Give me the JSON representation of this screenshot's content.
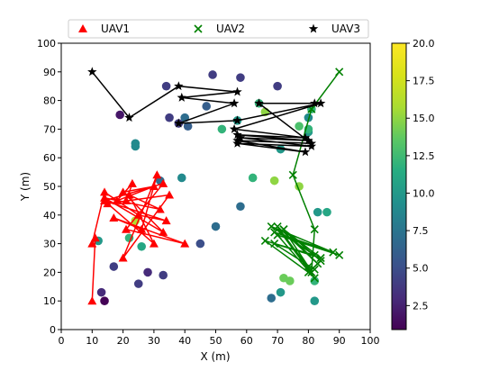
{
  "chart_data": {
    "type": "scatter",
    "title": "",
    "xlabel": "X (m)",
    "ylabel": "Y (m)",
    "xlim": [
      0,
      100
    ],
    "ylim": [
      0,
      100
    ],
    "xticks": [
      0,
      10,
      20,
      30,
      40,
      50,
      60,
      70,
      80,
      90,
      100
    ],
    "yticks": [
      0,
      10,
      20,
      30,
      40,
      50,
      60,
      70,
      80,
      90,
      100
    ],
    "grid": false,
    "legend_position": "top",
    "colorbar": {
      "min": 0.9,
      "max": 20.0,
      "ticks": [
        "2.5",
        "5.0",
        "7.5",
        "10.0",
        "12.5",
        "15.0",
        "17.5",
        "20.0"
      ],
      "colormap": "viridis"
    },
    "series": [
      {
        "name": "UAV1",
        "marker": "triangle",
        "color": "#ff0000",
        "x": [
          10,
          11,
          10,
          14,
          25,
          34,
          14,
          33,
          21,
          40,
          17,
          26,
          31,
          20,
          35,
          15,
          30,
          22,
          32,
          14,
          33,
          20,
          30,
          18,
          23,
          21
        ],
        "y": [
          10,
          32,
          30,
          48,
          40,
          38,
          45,
          51,
          35,
          30,
          39,
          35,
          54,
          25,
          47,
          44,
          30,
          47,
          42,
          46,
          34,
          48,
          50,
          45,
          51,
          45
        ]
      },
      {
        "name": "UAV2",
        "marker": "x",
        "color": "#008000",
        "x": [
          90,
          81,
          75,
          82,
          81,
          70,
          83,
          72,
          84,
          80,
          66,
          82,
          68,
          88,
          69,
          90,
          70,
          82,
          71,
          80,
          72,
          84,
          69,
          82
        ],
        "y": [
          90,
          77,
          54,
          35,
          20,
          36,
          23,
          35,
          24,
          20,
          31,
          26,
          36,
          27,
          34,
          26,
          33,
          18,
          34,
          22,
          35,
          25,
          30,
          21
        ]
      },
      {
        "name": "UAV3",
        "marker": "star",
        "color": "#000000",
        "x": [
          10,
          22,
          38,
          57,
          39,
          56,
          38,
          57,
          84,
          56,
          79,
          57,
          80,
          58,
          81,
          57,
          79,
          57,
          81,
          64,
          82
        ],
        "y": [
          90,
          74,
          85,
          83,
          81,
          79,
          72,
          73,
          79,
          70,
          67,
          68,
          66,
          67,
          64,
          65,
          62,
          66,
          65,
          79,
          79
        ]
      }
    ],
    "scatter_points": {
      "x": [
        13,
        14,
        12,
        25,
        22,
        17,
        28,
        33,
        24,
        26,
        45,
        50,
        58,
        68,
        71,
        72,
        74,
        82,
        82,
        86,
        83,
        80,
        77,
        71,
        69,
        62,
        64,
        57,
        52,
        47,
        41,
        40,
        38,
        35,
        39,
        34,
        24,
        24,
        32,
        19,
        49,
        58,
        70,
        77,
        80,
        81,
        80,
        66
      ],
      "y": [
        13,
        10,
        31,
        16,
        32,
        22,
        20,
        19,
        38,
        29,
        30,
        36,
        43,
        11,
        13,
        18,
        17,
        10,
        17,
        41,
        41,
        69,
        50,
        63,
        52,
        53,
        79,
        73,
        70,
        78,
        71,
        74,
        72,
        74,
        53,
        85,
        65,
        64,
        52,
        75,
        89,
        88,
        85,
        71,
        70,
        77,
        74,
        76
      ],
      "values": [
        3,
        1,
        10,
        4,
        12,
        4,
        3,
        4,
        16,
        11,
        5,
        7,
        7,
        7,
        10,
        14,
        14,
        10,
        12,
        11,
        10,
        10,
        15,
        10,
        15,
        12,
        12,
        10,
        12,
        6,
        6,
        7,
        4,
        4,
        9,
        4,
        9,
        9,
        7,
        2,
        4,
        4,
        4,
        13,
        12,
        12,
        9,
        15
      ]
    }
  }
}
